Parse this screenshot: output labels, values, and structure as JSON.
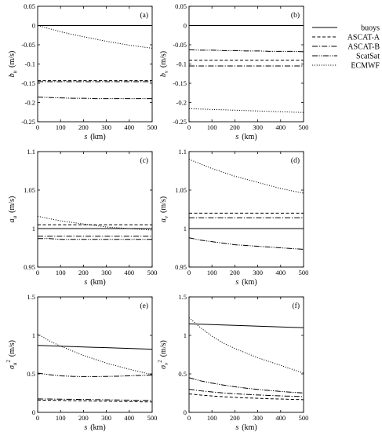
{
  "series_styles": [
    {
      "name": "buoys",
      "dash": ""
    },
    {
      "name": "ASCAT-A",
      "dash": "4,2.5"
    },
    {
      "name": "ASCAT-B",
      "dash": "7,2,1.2,2"
    },
    {
      "name": "ScatSat",
      "dash": "7,1.5,1.2,1.5,1.2,1.5"
    },
    {
      "name": "ECMWF",
      "dash": "1.1,1.8"
    }
  ],
  "legend": [
    "buoys",
    "ASCAT-A",
    "ASCAT-B",
    "ScatSat",
    "ECMWF"
  ],
  "chart_data": [
    {
      "type": "line",
      "tag": "(a)",
      "ylabel_main": "b",
      "ylabel_sub": "u",
      "ylabel_unit": "(m/s)",
      "xlabel": "s",
      "xunit": "(km)",
      "xlim": [
        0,
        500
      ],
      "ylim": [
        -0.25,
        0.05
      ],
      "xticks": [
        0,
        100,
        200,
        300,
        400,
        500
      ],
      "yticks": [
        -0.25,
        -0.2,
        -0.15,
        -0.1,
        -0.05,
        0,
        0.05
      ],
      "ytick_labels": [
        "-0.25",
        "-0.2",
        "-0.15",
        "-0.1",
        "-0.05",
        "0",
        "0.05"
      ],
      "x": [
        0,
        50,
        100,
        150,
        200,
        250,
        300,
        350,
        400,
        450,
        500
      ],
      "series": [
        {
          "name": "buoys",
          "values": [
            0,
            0,
            0,
            0,
            0,
            0,
            0,
            0,
            0,
            0,
            0
          ]
        },
        {
          "name": "ASCAT-A",
          "values": [
            -0.143,
            -0.143,
            -0.143,
            -0.143,
            -0.143,
            -0.143,
            -0.143,
            -0.143,
            -0.143,
            -0.143,
            -0.143
          ]
        },
        {
          "name": "ASCAT-B",
          "values": [
            -0.146,
            -0.146,
            -0.146,
            -0.146,
            -0.146,
            -0.146,
            -0.146,
            -0.146,
            -0.146,
            -0.146,
            -0.146
          ]
        },
        {
          "name": "ScatSat",
          "values": [
            -0.186,
            -0.187,
            -0.188,
            -0.189,
            -0.189,
            -0.19,
            -0.19,
            -0.19,
            -0.19,
            -0.19,
            -0.19
          ]
        },
        {
          "name": "ECMWF",
          "values": [
            0,
            -0.008,
            -0.016,
            -0.023,
            -0.029,
            -0.035,
            -0.041,
            -0.046,
            -0.051,
            -0.055,
            -0.059
          ]
        }
      ]
    },
    {
      "type": "line",
      "tag": "(b)",
      "ylabel_main": "b",
      "ylabel_sub": "v",
      "ylabel_unit": "(m/s)",
      "xlabel": "s",
      "xunit": "(km)",
      "xlim": [
        0,
        500
      ],
      "ylim": [
        -0.25,
        0.05
      ],
      "xticks": [
        0,
        100,
        200,
        300,
        400,
        500
      ],
      "yticks": [
        -0.25,
        -0.2,
        -0.15,
        -0.1,
        -0.05,
        0,
        0.05
      ],
      "ytick_labels": [
        "-0.25",
        "-0.2",
        "-0.15",
        "-0.1",
        "-0.05",
        "0",
        "0.05"
      ],
      "x": [
        0,
        50,
        100,
        150,
        200,
        250,
        300,
        350,
        400,
        450,
        500
      ],
      "series": [
        {
          "name": "buoys",
          "values": [
            0,
            0,
            0,
            0,
            0,
            0,
            0,
            0,
            0,
            0,
            0
          ]
        },
        {
          "name": "ASCAT-A",
          "values": [
            -0.09,
            -0.09,
            -0.09,
            -0.09,
            -0.09,
            -0.09,
            -0.09,
            -0.09,
            -0.09,
            -0.09,
            -0.09
          ]
        },
        {
          "name": "ASCAT-B",
          "values": [
            -0.105,
            -0.105,
            -0.105,
            -0.105,
            -0.105,
            -0.105,
            -0.105,
            -0.105,
            -0.105,
            -0.105,
            -0.105
          ]
        },
        {
          "name": "ScatSat",
          "values": [
            -0.063,
            -0.064,
            -0.064,
            -0.065,
            -0.065,
            -0.066,
            -0.066,
            -0.067,
            -0.067,
            -0.067,
            -0.068
          ]
        },
        {
          "name": "ECMWF",
          "values": [
            -0.216,
            -0.217,
            -0.218,
            -0.219,
            -0.22,
            -0.221,
            -0.222,
            -0.223,
            -0.224,
            -0.225,
            -0.226
          ]
        }
      ]
    },
    {
      "type": "line",
      "tag": "(c)",
      "ylabel_main": "a",
      "ylabel_sub": "u",
      "ylabel_unit": "(m/s)",
      "xlabel": "s",
      "xunit": "(km)",
      "xlim": [
        0,
        500
      ],
      "ylim": [
        0.95,
        1.1
      ],
      "xticks": [
        0,
        100,
        200,
        300,
        400,
        500
      ],
      "yticks": [
        0.95,
        1,
        1.05,
        1.1
      ],
      "ytick_labels": [
        "0.95",
        "1",
        "1.05",
        "1.1"
      ],
      "x": [
        0,
        50,
        100,
        150,
        200,
        250,
        300,
        350,
        400,
        450,
        500
      ],
      "series": [
        {
          "name": "buoys",
          "values": [
            1,
            1,
            1,
            1,
            1,
            1,
            1,
            1,
            1,
            1,
            1
          ]
        },
        {
          "name": "ASCAT-A",
          "values": [
            1.005,
            1.005,
            1.005,
            1.005,
            1.005,
            1.005,
            1.005,
            1.005,
            1.005,
            1.005,
            1.005
          ]
        },
        {
          "name": "ASCAT-B",
          "values": [
            0.99,
            0.99,
            0.99,
            0.99,
            0.99,
            0.99,
            0.99,
            0.99,
            0.99,
            0.99,
            0.99
          ]
        },
        {
          "name": "ScatSat",
          "values": [
            0.987,
            0.987,
            0.986,
            0.986,
            0.986,
            0.986,
            0.986,
            0.986,
            0.986,
            0.986,
            0.986
          ]
        },
        {
          "name": "ECMWF",
          "values": [
            1.016,
            1.013,
            1.01,
            1.008,
            1.006,
            1.004,
            1.002,
            1.001,
            1,
            0.999,
            0.998
          ]
        }
      ]
    },
    {
      "type": "line",
      "tag": "(d)",
      "ylabel_main": "a",
      "ylabel_sub": "v",
      "ylabel_unit": "(m/s)",
      "xlabel": "s",
      "xunit": "(km)",
      "xlim": [
        0,
        500
      ],
      "ylim": [
        0.95,
        1.1
      ],
      "xticks": [
        0,
        100,
        200,
        300,
        400,
        500
      ],
      "yticks": [
        0.95,
        1,
        1.05,
        1.1
      ],
      "ytick_labels": [
        "0.95",
        "1",
        "1.05",
        "1.1"
      ],
      "x": [
        0,
        50,
        100,
        150,
        200,
        250,
        300,
        350,
        400,
        450,
        500
      ],
      "series": [
        {
          "name": "buoys",
          "values": [
            1,
            1,
            1,
            1,
            1,
            1,
            1,
            1,
            1,
            1,
            1
          ]
        },
        {
          "name": "ASCAT-A",
          "values": [
            1.02,
            1.02,
            1.02,
            1.02,
            1.02,
            1.02,
            1.02,
            1.02,
            1.02,
            1.02,
            1.02
          ]
        },
        {
          "name": "ASCAT-B",
          "values": [
            1.014,
            1.014,
            1.014,
            1.014,
            1.014,
            1.014,
            1.014,
            1.014,
            1.014,
            1.014,
            1.014
          ]
        },
        {
          "name": "ScatSat",
          "values": [
            0.988,
            0.985,
            0.983,
            0.981,
            0.979,
            0.978,
            0.977,
            0.976,
            0.975,
            0.974,
            0.973
          ]
        },
        {
          "name": "ECMWF",
          "values": [
            1.09,
            1.084,
            1.078,
            1.073,
            1.068,
            1.064,
            1.06,
            1.056,
            1.052,
            1.049,
            1.046
          ]
        }
      ]
    },
    {
      "type": "line",
      "tag": "(e)",
      "ylabel_main": "σ",
      "ylabel_sub": "u",
      "ylabel_sup": "2",
      "ylabel_unit": "(m/s)",
      "xlabel": "s",
      "xunit": "(km)",
      "xlim": [
        0,
        500
      ],
      "ylim": [
        0,
        1.5
      ],
      "xticks": [
        0,
        100,
        200,
        300,
        400,
        500
      ],
      "yticks": [
        0,
        0.5,
        1,
        1.5
      ],
      "ytick_labels": [
        "0",
        "0.5",
        "1",
        "1.5"
      ],
      "x": [
        0,
        50,
        100,
        150,
        200,
        250,
        300,
        350,
        400,
        450,
        500
      ],
      "series": [
        {
          "name": "buoys",
          "values": [
            0.87,
            0.865,
            0.86,
            0.855,
            0.85,
            0.845,
            0.84,
            0.835,
            0.83,
            0.825,
            0.82
          ]
        },
        {
          "name": "ASCAT-A",
          "values": [
            0.16,
            0.157,
            0.155,
            0.152,
            0.15,
            0.147,
            0.145,
            0.142,
            0.14,
            0.137,
            0.135
          ]
        },
        {
          "name": "ASCAT-B",
          "values": [
            0.175,
            0.173,
            0.171,
            0.169,
            0.167,
            0.165,
            0.163,
            0.161,
            0.159,
            0.157,
            0.155
          ]
        },
        {
          "name": "ScatSat",
          "values": [
            0.51,
            0.49,
            0.475,
            0.468,
            0.465,
            0.465,
            0.467,
            0.47,
            0.475,
            0.48,
            0.485
          ]
        },
        {
          "name": "ECMWF",
          "values": [
            1.02,
            0.93,
            0.86,
            0.8,
            0.74,
            0.69,
            0.64,
            0.6,
            0.56,
            0.525,
            0.49
          ]
        }
      ]
    },
    {
      "type": "line",
      "tag": "(f)",
      "ylabel_main": "σ",
      "ylabel_sub": "v",
      "ylabel_sup": "2",
      "ylabel_unit": "(m/s)",
      "xlabel": "s",
      "xunit": "(km)",
      "xlim": [
        0,
        500
      ],
      "ylim": [
        0,
        1.5
      ],
      "xticks": [
        0,
        100,
        200,
        300,
        400,
        500
      ],
      "yticks": [
        0,
        0.5,
        1,
        1.5
      ],
      "ytick_labels": [
        "0",
        "0.5",
        "1",
        "1.5"
      ],
      "x": [
        0,
        50,
        100,
        150,
        200,
        250,
        300,
        350,
        400,
        450,
        500
      ],
      "series": [
        {
          "name": "buoys",
          "values": [
            1.15,
            1.145,
            1.14,
            1.135,
            1.13,
            1.125,
            1.12,
            1.115,
            1.11,
            1.105,
            1.1
          ]
        },
        {
          "name": "ASCAT-A",
          "values": [
            0.24,
            0.225,
            0.213,
            0.203,
            0.195,
            0.188,
            0.182,
            0.177,
            0.173,
            0.169,
            0.165
          ]
        },
        {
          "name": "ASCAT-B",
          "values": [
            0.3,
            0.28,
            0.265,
            0.252,
            0.242,
            0.233,
            0.226,
            0.22,
            0.214,
            0.209,
            0.205
          ]
        },
        {
          "name": "ScatSat",
          "values": [
            0.45,
            0.41,
            0.38,
            0.355,
            0.333,
            0.314,
            0.298,
            0.284,
            0.272,
            0.261,
            0.252
          ]
        },
        {
          "name": "ECMWF",
          "values": [
            1.23,
            1.1,
            0.99,
            0.9,
            0.83,
            0.77,
            0.71,
            0.66,
            0.61,
            0.56,
            0.51
          ]
        }
      ]
    }
  ]
}
